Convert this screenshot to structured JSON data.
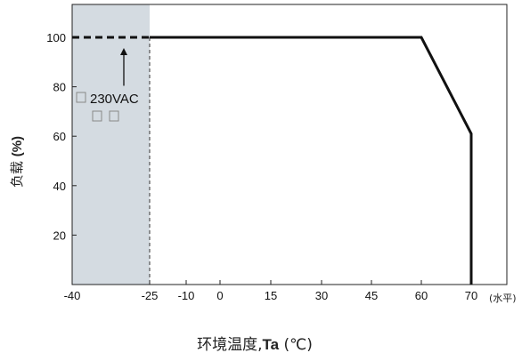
{
  "chart_data": {
    "type": "line",
    "title": "",
    "xlabel_prefix": "环境温度,",
    "xlabel_bold": "Ta",
    "xlabel_suffix": " (℃)",
    "xlabel_unit": "(水平)",
    "ylabel_prefix": "负载 ",
    "ylabel_bold": "(%)",
    "x_ticks": [
      -40,
      -25,
      -10,
      0,
      15,
      30,
      45,
      60,
      70
    ],
    "y_ticks": [
      20,
      40,
      60,
      80,
      100
    ],
    "xlim": [
      -40,
      72
    ],
    "ylim": [
      0,
      113
    ],
    "grid": false,
    "series": [
      {
        "style": "dashed",
        "points": [
          [
            -40,
            100
          ],
          [
            -25,
            100
          ]
        ]
      },
      {
        "style": "solid",
        "points": [
          [
            -25,
            100
          ],
          [
            60,
            100
          ],
          [
            70,
            61
          ],
          [
            70,
            0
          ]
        ]
      }
    ],
    "shaded_region": {
      "x": [
        -40,
        -25
      ],
      "color": "#d4dbe1"
    },
    "annotation": {
      "text": "230VAC",
      "arrow_to": [
        -30,
        100
      ],
      "arrow_from": [
        -30,
        93
      ]
    }
  }
}
